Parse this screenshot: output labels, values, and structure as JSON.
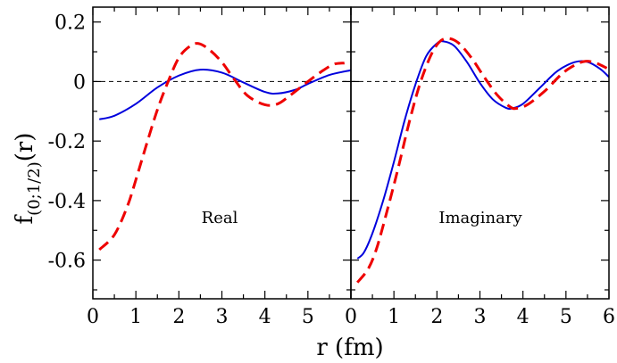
{
  "chart_data": [
    {
      "type": "line",
      "panel_label": "Real",
      "xlim": [
        0,
        6
      ],
      "ylim": [
        -0.73,
        0.25
      ],
      "xticks": [
        "0",
        "1",
        "2",
        "3",
        "4",
        "5",
        ""
      ],
      "yticks": [
        {
          "value": 0.2,
          "label": "0.2"
        },
        {
          "value": 0,
          "label": "0"
        },
        {
          "value": -0.2,
          "label": "-0.2"
        },
        {
          "value": -0.4,
          "label": "-0.4"
        },
        {
          "value": -0.6,
          "label": "-0.6"
        }
      ],
      "reference_line": 0,
      "series": [
        {
          "name": "solid-blue",
          "color": "#0000dd",
          "dash": "solid",
          "x": [
            0.15,
            0.5,
            1.0,
            1.5,
            2.0,
            2.5,
            3.0,
            3.5,
            4.0,
            4.3,
            4.7,
            5.0,
            5.5,
            6.0
          ],
          "y": [
            -0.127,
            -0.115,
            -0.075,
            -0.02,
            0.02,
            0.04,
            0.03,
            -0.003,
            -0.035,
            -0.04,
            -0.028,
            -0.008,
            0.022,
            0.038
          ]
        },
        {
          "name": "dashed-red",
          "color": "#ee0000",
          "dash": "dashed",
          "x": [
            0.15,
            0.5,
            0.8,
            1.0,
            1.25,
            1.5,
            1.75,
            2.0,
            2.25,
            2.45,
            2.7,
            3.0,
            3.3,
            3.6,
            4.0,
            4.3,
            4.6,
            5.0,
            5.3,
            5.6,
            5.85
          ],
          "y": [
            -0.565,
            -0.515,
            -0.42,
            -0.33,
            -0.21,
            -0.095,
            0.0,
            0.08,
            0.118,
            0.128,
            0.108,
            0.065,
            0.005,
            -0.048,
            -0.078,
            -0.075,
            -0.045,
            0.0,
            0.032,
            0.058,
            0.062
          ]
        }
      ]
    },
    {
      "type": "line",
      "panel_label": "Imaginary",
      "xlim": [
        0,
        6
      ],
      "ylim": [
        -0.73,
        0.25
      ],
      "xticks": [
        "0",
        "1",
        "2",
        "3",
        "4",
        "5",
        "6"
      ],
      "reference_line": 0,
      "series": [
        {
          "name": "solid-blue",
          "color": "#0000dd",
          "dash": "solid",
          "x": [
            0.15,
            0.3,
            0.5,
            0.75,
            1.0,
            1.25,
            1.5,
            1.75,
            2.0,
            2.15,
            2.4,
            2.7,
            3.0,
            3.3,
            3.6,
            3.75,
            4.0,
            4.4,
            4.8,
            5.2,
            5.5,
            5.8,
            6.0
          ],
          "y": [
            -0.595,
            -0.575,
            -0.51,
            -0.4,
            -0.27,
            -0.13,
            -0.01,
            0.085,
            0.128,
            0.135,
            0.12,
            0.065,
            -0.005,
            -0.06,
            -0.088,
            -0.09,
            -0.075,
            -0.02,
            0.035,
            0.065,
            0.066,
            0.042,
            0.015
          ]
        },
        {
          "name": "dashed-red",
          "color": "#ee0000",
          "dash": "dashed",
          "x": [
            0.15,
            0.4,
            0.6,
            0.85,
            1.1,
            1.35,
            1.6,
            1.85,
            2.05,
            2.25,
            2.5,
            2.8,
            3.1,
            3.4,
            3.7,
            3.85,
            4.1,
            4.5,
            4.9,
            5.2,
            5.45,
            5.7,
            5.95
          ],
          "y": [
            -0.675,
            -0.63,
            -0.56,
            -0.43,
            -0.29,
            -0.14,
            -0.01,
            0.085,
            0.132,
            0.145,
            0.13,
            0.08,
            0.015,
            -0.045,
            -0.085,
            -0.09,
            -0.078,
            -0.033,
            0.025,
            0.055,
            0.068,
            0.062,
            0.045
          ]
        }
      ]
    }
  ],
  "axes": {
    "xlabel": "r (fm)",
    "ylabel_main": "f",
    "ylabel_subscript": "(0;1/2)",
    "ylabel_suffix": "(r)"
  }
}
